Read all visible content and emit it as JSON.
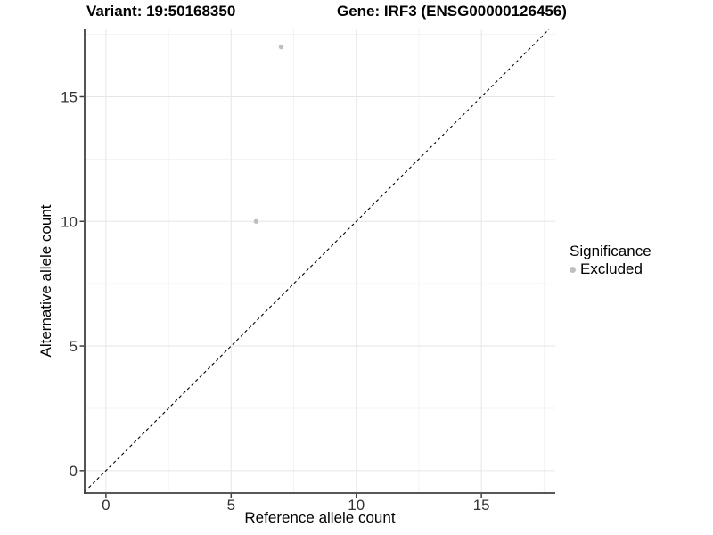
{
  "chart_data": {
    "type": "scatter",
    "title_left": "Variant: 19:50168350",
    "title_right": "Gene: IRF3 (ENSG00000126456)",
    "xlabel": "Reference allele count",
    "ylabel": "Alternative allele count",
    "xlim": [
      -0.85,
      17.95
    ],
    "ylim": [
      -0.9,
      17.7
    ],
    "x_ticks": [
      0,
      5,
      10,
      15
    ],
    "y_ticks": [
      0,
      5,
      10,
      15
    ],
    "x_minor_ticks": [
      2.5,
      7.5,
      12.5,
      17.5
    ],
    "y_minor_ticks": [
      2.5,
      7.5,
      12.5,
      17.5
    ],
    "grid": "major+minor",
    "identity_line": {
      "slope": 1,
      "intercept": 0,
      "style": "dashed",
      "color": "#000000"
    },
    "series": [
      {
        "name": "Excluded",
        "color": "#bfbfbf",
        "points": [
          {
            "x": 6,
            "y": 10
          },
          {
            "x": 7,
            "y": 17
          }
        ]
      }
    ],
    "legend": {
      "title": "Significance",
      "position": "right",
      "items": [
        {
          "label": "Excluded",
          "color": "#bfbfbf"
        }
      ]
    },
    "colors": {
      "grid_major": "#e6e6e6",
      "grid_minor": "#f3f3f3",
      "axis": "#404040",
      "tick_label": "#333333",
      "title": "#000000"
    }
  }
}
